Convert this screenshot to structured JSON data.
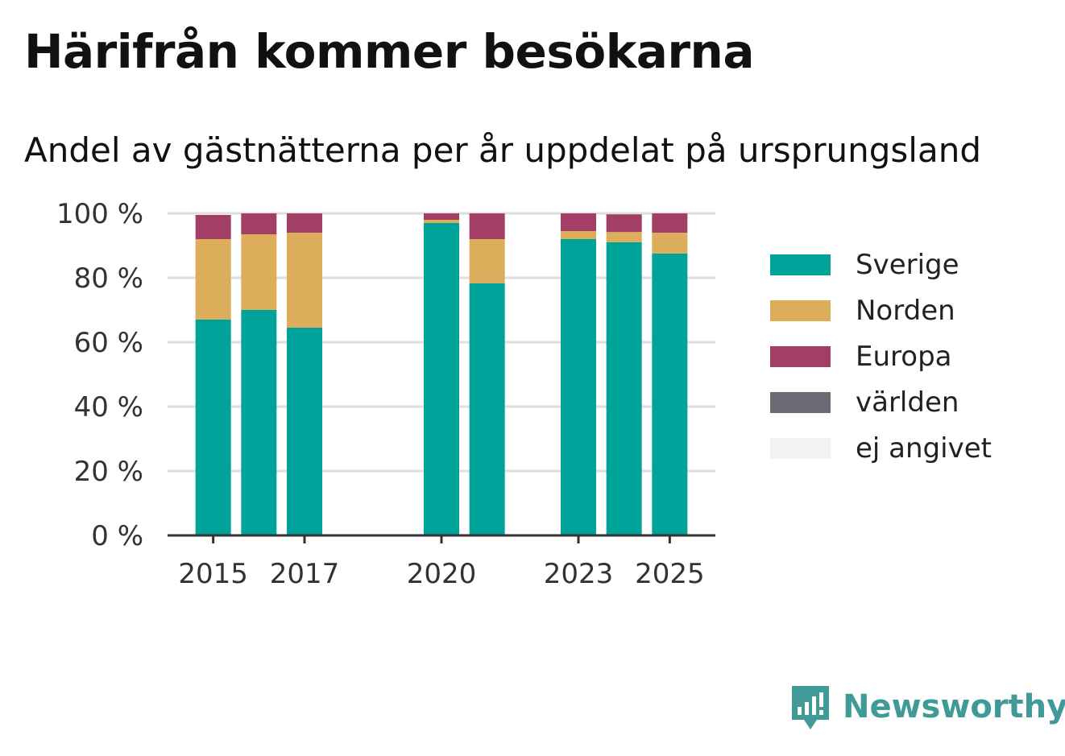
{
  "title": "Härifrån kommer besökarna",
  "subtitle": "Andel av gästnätterna per år uppdelat på ursprungsland",
  "brand": {
    "name": "Newsworthy",
    "icon": "newsworthy-logo-icon",
    "color": "#3f9a98"
  },
  "chart_data": {
    "type": "bar",
    "stacked": true,
    "x": [
      2015,
      2016,
      2017,
      2020,
      2021,
      2023,
      2024,
      2025
    ],
    "x_tick_labels": [
      "2015",
      "2017",
      "2020",
      "2023",
      "2025"
    ],
    "x_tick_values": [
      2015,
      2017,
      2020,
      2023,
      2025
    ],
    "xlim": [
      2014,
      2026
    ],
    "ylim": [
      0,
      100
    ],
    "y_ticks": [
      0,
      20,
      40,
      60,
      80,
      100
    ],
    "y_tick_labels": [
      "0 %",
      "20 %",
      "40 %",
      "60 %",
      "80 %",
      "100 %"
    ],
    "grid": true,
    "legend_position": "right",
    "series": [
      {
        "name": "Sverige",
        "color": "#00a39a",
        "values": [
          67,
          70,
          64.5,
          97,
          78.3,
          92,
          91,
          87.5
        ]
      },
      {
        "name": "Norden",
        "color": "#dcad5a",
        "values": [
          25,
          23.5,
          29.5,
          1,
          13.7,
          2.5,
          3.2,
          6.5
        ]
      },
      {
        "name": "Europa",
        "color": "#a33e66",
        "values": [
          7.5,
          6.5,
          6,
          2,
          8,
          5.5,
          5.5,
          6
        ]
      },
      {
        "name": "världen",
        "color": "#6b6b73",
        "values": [
          0,
          0,
          0,
          0,
          0,
          0,
          0,
          0
        ]
      },
      {
        "name": "ej angivet",
        "color": "#f2f2f2",
        "values": [
          0,
          0,
          0,
          0,
          0,
          0,
          0,
          0
        ]
      }
    ]
  }
}
